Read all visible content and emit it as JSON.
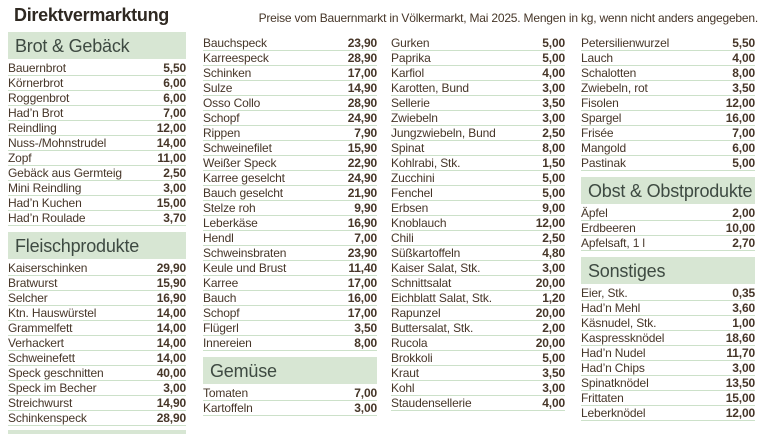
{
  "header": {
    "title": "Direktvermarktung",
    "subtitle": "Preise vom Bauernmarkt in Völkermarkt, Mai 2025. Mengen in kg, wenn nicht anders angegeben."
  },
  "colors": {
    "title_color": "#2f2922",
    "text_color": "#463628",
    "section_band": "#d7e6d3",
    "section_text": "#3e4a42",
    "divider": "#cce1c9",
    "background": "#ffffff"
  },
  "columns": [
    {
      "blocks": [
        {
          "type": "section",
          "title": "Brot & Gebäck"
        },
        {
          "type": "rows",
          "rows": [
            [
              "Bauernbrot",
              "5,50"
            ],
            [
              "Körnerbrot",
              "6,00"
            ],
            [
              "Roggenbrot",
              "6,00"
            ],
            [
              "Had’n Brot",
              "7,00"
            ],
            [
              "Reindling",
              "12,00"
            ],
            [
              "Nuss-/Mohnstrudel",
              "14,00"
            ],
            [
              "Zopf",
              "11,00"
            ],
            [
              "Gebäck aus Germteig",
              "2,50"
            ],
            [
              "Mini Reindling",
              "3,00"
            ],
            [
              "Had’n Kuchen",
              "15,00"
            ],
            [
              "Had’n Roulade",
              "3,70"
            ]
          ]
        },
        {
          "type": "section",
          "title": "Fleischprodukte"
        },
        {
          "type": "rows",
          "rows": [
            [
              "Kaiserschinken",
              "29,90"
            ],
            [
              "Bratwurst",
              "15,90"
            ],
            [
              "Selcher",
              "16,90"
            ],
            [
              "Ktn. Hauswürstel",
              "14,00"
            ],
            [
              "Grammelfett",
              "14,00"
            ],
            [
              "Verhackert",
              "14,00"
            ],
            [
              "Schweinefett",
              "14,00"
            ],
            [
              "Speck geschnitten",
              "40,00"
            ],
            [
              "Speck im Becher",
              "3,00"
            ],
            [
              "Streichwurst",
              "14,90"
            ],
            [
              "Schinkenspeck",
              "28,90"
            ]
          ]
        },
        {
          "type": "sliver"
        }
      ]
    },
    {
      "blocks": [
        {
          "type": "rows",
          "rows": [
            [
              "Bauchspeck",
              "23,90"
            ],
            [
              "Karreespeck",
              "28,90"
            ],
            [
              "Schinken",
              "17,00"
            ],
            [
              "Sulze",
              "14,90"
            ],
            [
              "Osso Collo",
              "28,90"
            ],
            [
              "Schopf",
              "24,90"
            ],
            [
              "Rippen",
              "7,90"
            ],
            [
              "Schweinefilet",
              "15,90"
            ],
            [
              "Weißer Speck",
              "22,90"
            ],
            [
              "Karree geselcht",
              "24,90"
            ],
            [
              "Bauch geselcht",
              "21,90"
            ],
            [
              "Stelze roh",
              "9,90"
            ],
            [
              "Leberkäse",
              "16,90"
            ],
            [
              "Hendl",
              "7,00"
            ],
            [
              "Schweinsbraten",
              "23,90"
            ],
            [
              "Keule und Brust",
              "11,40"
            ],
            [
              "Karree",
              "17,00"
            ],
            [
              "Bauch",
              "16,00"
            ],
            [
              "Schopf",
              "17,00"
            ],
            [
              "Flügerl",
              "3,50"
            ],
            [
              "Innereien",
              "8,00"
            ]
          ]
        },
        {
          "type": "section",
          "title": "Gemüse"
        },
        {
          "type": "rows",
          "rows": [
            [
              "Tomaten",
              "7,00"
            ],
            [
              "Kartoffeln",
              "3,00"
            ]
          ]
        }
      ]
    },
    {
      "blocks": [
        {
          "type": "rows",
          "rows": [
            [
              "Gurken",
              "5,00"
            ],
            [
              "Paprika",
              "5,00"
            ],
            [
              "Karfiol",
              "4,00"
            ],
            [
              "Karotten, Bund",
              "3,00"
            ],
            [
              "Sellerie",
              "3,50"
            ],
            [
              "Zwiebeln",
              "3,00"
            ],
            [
              "Jungzwiebeln, Bund",
              "2,50"
            ],
            [
              "Spinat",
              "8,00"
            ],
            [
              "Kohlrabi, Stk.",
              "1,50"
            ],
            [
              "Zucchini",
              "5,00"
            ],
            [
              "Fenchel",
              "5,00"
            ],
            [
              "Erbsen",
              "9,00"
            ],
            [
              "Knoblauch",
              "12,00"
            ],
            [
              "Chili",
              "2,50"
            ],
            [
              "Süßkartoffeln",
              "4,80"
            ],
            [
              "Kaiser Salat, Stk.",
              "3,00"
            ],
            [
              "Schnittsalat",
              "20,00"
            ],
            [
              "Eichblatt Salat, Stk.",
              "1,20"
            ],
            [
              "Rapunzel",
              "20,00"
            ],
            [
              "Buttersalat, Stk.",
              "2,00"
            ],
            [
              "Rucola",
              "20,00"
            ],
            [
              "Brokkoli",
              "5,00"
            ],
            [
              "Kraut",
              "3,50"
            ],
            [
              "Kohl",
              "3,00"
            ],
            [
              "Staudensellerie",
              "4,00"
            ]
          ]
        }
      ]
    },
    {
      "blocks": [
        {
          "type": "rows",
          "rows": [
            [
              "Petersilienwurzel",
              "5,50"
            ],
            [
              "Lauch",
              "4,00"
            ],
            [
              "Schalotten",
              "8,00"
            ],
            [
              "Zwiebeln, rot",
              "3,50"
            ],
            [
              "Fisolen",
              "12,00"
            ],
            [
              "Spargel",
              "16,00"
            ],
            [
              "Frisée",
              "7,00"
            ],
            [
              "Mangold",
              "6,00"
            ],
            [
              "Pastinak",
              "5,00"
            ]
          ]
        },
        {
          "type": "section",
          "title": "Obst & Obstprodukte"
        },
        {
          "type": "rows",
          "rows": [
            [
              "Äpfel",
              "2,00"
            ],
            [
              "Erdbeeren",
              "10,00"
            ],
            [
              "Apfelsaft, 1 l",
              "2,70"
            ]
          ]
        },
        {
          "type": "section",
          "title": "Sonstiges"
        },
        {
          "type": "rows",
          "rows": [
            [
              "Eier, Stk.",
              "0,35"
            ],
            [
              "Had’n Mehl",
              "3,60"
            ],
            [
              "Käsnudel, Stk.",
              "1,00"
            ],
            [
              "Kaspressknödel",
              "18,60"
            ],
            [
              "Had’n Nudel",
              "11,70"
            ],
            [
              "Had’n Chips",
              "3,00"
            ],
            [
              "Spinatknödel",
              "13,50"
            ],
            [
              "Frittaten",
              "15,00"
            ],
            [
              "Leberknödel",
              "12,00"
            ]
          ]
        }
      ]
    }
  ]
}
